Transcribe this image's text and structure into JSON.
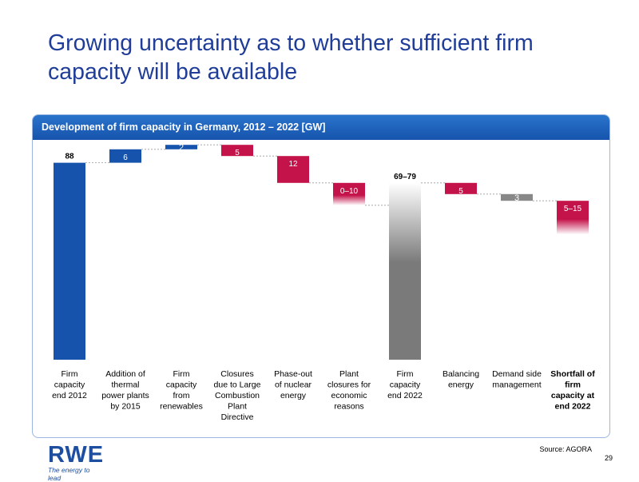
{
  "slide": {
    "title": "Growing uncertainty as to whether sufficient firm capacity will be available",
    "panel_title": "Development of firm capacity in Germany, 2012 – 2022 [GW]",
    "source": "Source: AGORA",
    "page_number": "29",
    "logo": {
      "word": "RWE",
      "tagline": "The energy to lead"
    }
  },
  "colors": {
    "blue": "#1653ad",
    "red": "#c4134a",
    "grey": "#888888",
    "header": "#1d62bf"
  },
  "chart_data": {
    "type": "bar",
    "subtype": "waterfall",
    "title": "Development of firm capacity in Germany, 2012 – 2022 [GW]",
    "unit": "GW",
    "categories": [
      "Firm capacity end 2012",
      "Addition of thermal power plants by 2015",
      "Firm capacity from renewables",
      "Closures due to Large Combustion Plant Directive",
      "Phase-out of nuclear energy",
      "Plant closures for economic reasons",
      "Firm capacity end 2022",
      "Balancing energy",
      "Demand side management",
      "Shortfall of firm capacity at end 2022"
    ],
    "category_lines": [
      [
        "Firm",
        "capacity",
        "end 2012"
      ],
      [
        "Addition of",
        "thermal",
        "power plants",
        "by 2015"
      ],
      [
        "Firm",
        "capacity",
        "from",
        "renewables"
      ],
      [
        "Closures",
        "due to Large",
        "Combustion",
        "Plant",
        "Directive"
      ],
      [
        "Phase-out",
        "of nuclear",
        "energy"
      ],
      [
        "Plant",
        "closures for",
        "economic",
        "reasons"
      ],
      [
        "Firm",
        "capacity",
        "end 2022"
      ],
      [
        "Balancing",
        "energy"
      ],
      [
        "Demand side",
        "management"
      ],
      [
        "Shortfall of",
        "firm",
        "capacity at",
        "end 2022"
      ]
    ],
    "bold_categories": [
      9
    ],
    "bars": [
      {
        "kind": "total",
        "label": "88",
        "start": 0,
        "end": 88,
        "color": "blue"
      },
      {
        "kind": "increase",
        "label": "6",
        "start": 88,
        "end": 94,
        "color": "blue"
      },
      {
        "kind": "increase",
        "label": "2",
        "start": 94,
        "end": 96,
        "color": "blue"
      },
      {
        "kind": "decrease",
        "label": "5",
        "start": 96,
        "end": 91,
        "color": "red"
      },
      {
        "kind": "decrease",
        "label": "12",
        "start": 91,
        "end": 79,
        "color": "red"
      },
      {
        "kind": "decrease-range",
        "label": "0–10",
        "start": 79,
        "end": 69,
        "color": "red",
        "fade": true
      },
      {
        "kind": "total-range",
        "label": "69–79",
        "start": 0,
        "end": 79,
        "color": "grey",
        "fade": true
      },
      {
        "kind": "decrease",
        "label": "5",
        "start": 79,
        "end": 74,
        "color": "red"
      },
      {
        "kind": "decrease",
        "label": "3",
        "start": 74,
        "end": 71,
        "color": "grey"
      },
      {
        "kind": "decrease-range",
        "label": "5–15",
        "start": 71,
        "end": 56,
        "color": "red",
        "fade": true
      }
    ],
    "ylim": [
      0,
      100
    ]
  }
}
